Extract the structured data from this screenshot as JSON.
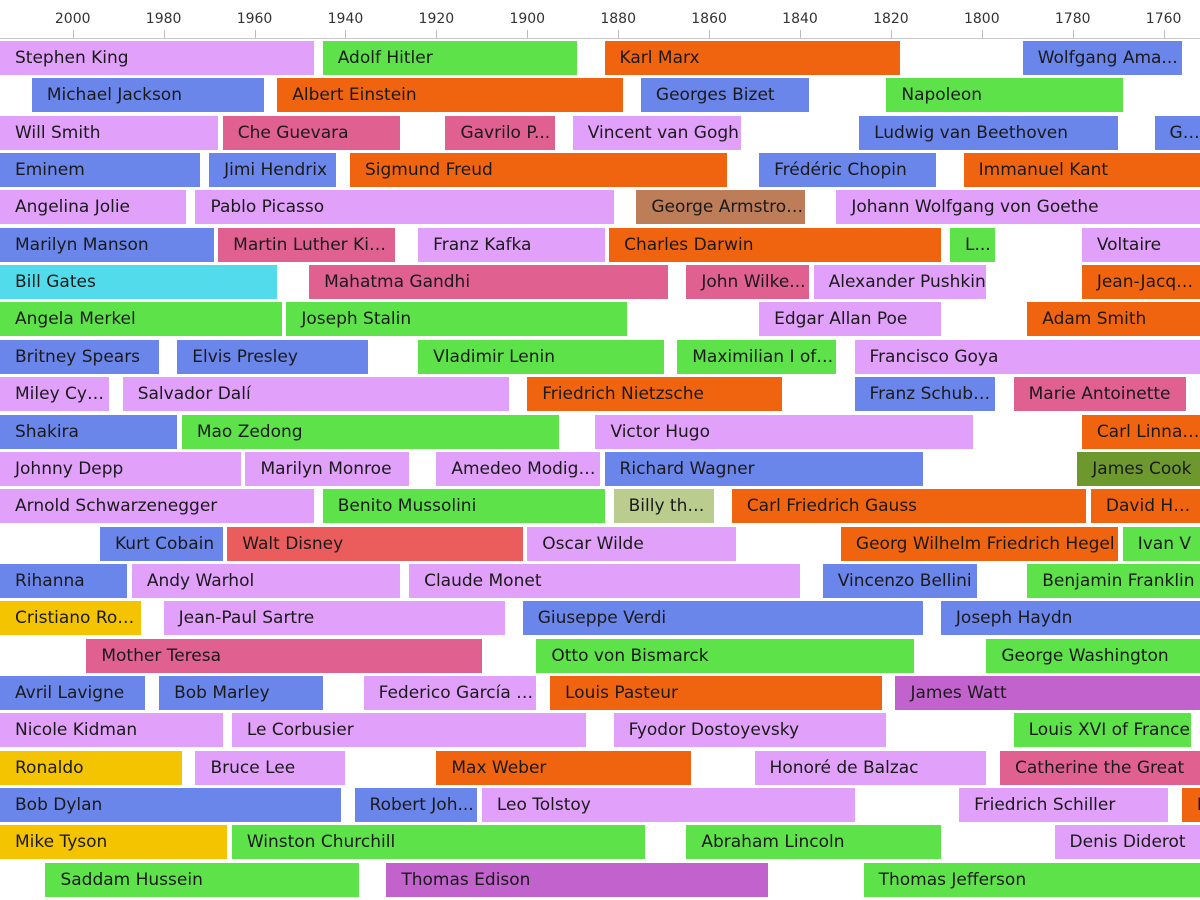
{
  "chart_data": {
    "type": "timeline",
    "axis": {
      "ticks": [
        2000,
        1980,
        1960,
        1940,
        1920,
        1900,
        1880,
        1860,
        1840,
        1820,
        1800,
        1780,
        1760
      ],
      "range": [
        2016,
        1752
      ],
      "direction": "descending-left-to-right"
    },
    "legend": "none",
    "colors": {
      "lavender": "#e1a0fa",
      "blue": "#6b86eb",
      "green": "#5ee24a",
      "orange": "#f06410",
      "pink": "#e0608f",
      "cyan": "#52dceb",
      "brown": "#bd7d58",
      "gold": "#f5c400",
      "purple": "#c262cc",
      "olive": "#6d982e",
      "khaki": "#bbcd8e",
      "coral": "#eb5d5d"
    },
    "rows": [
      [
        {
          "label": "Stephen King",
          "start": 1947,
          "end": 2016,
          "color": "lavender"
        },
        {
          "label": "Adolf Hitler",
          "start": 1889,
          "end": 1945,
          "color": "green"
        },
        {
          "label": "Karl Marx",
          "start": 1818,
          "end": 1883,
          "color": "orange"
        },
        {
          "label": "Wolfgang Ama...",
          "start": 1756,
          "end": 1791,
          "color": "blue"
        }
      ],
      [
        {
          "label": "Michael Jackson",
          "start": 1958,
          "end": 2009,
          "color": "blue"
        },
        {
          "label": "Albert Einstein",
          "start": 1879,
          "end": 1955,
          "color": "orange"
        },
        {
          "label": "Georges Bizet",
          "start": 1838,
          "end": 1875,
          "color": "blue"
        },
        {
          "label": "Napoleon",
          "start": 1769,
          "end": 1821,
          "color": "green"
        }
      ],
      [
        {
          "label": "Will Smith",
          "start": 1968,
          "end": 2016,
          "color": "lavender"
        },
        {
          "label": "Che Guevara",
          "start": 1928,
          "end": 1967,
          "color": "pink"
        },
        {
          "label": "Gavrilo P...",
          "start": 1894,
          "end": 1918,
          "color": "pink"
        },
        {
          "label": "Vincent van Gogh",
          "start": 1853,
          "end": 1890,
          "color": "lavender"
        },
        {
          "label": "Ludwig van Beethoven",
          "start": 1770,
          "end": 1827,
          "color": "blue"
        },
        {
          "label": "George",
          "start": 1732,
          "end": 1762,
          "color": "blue"
        }
      ],
      [
        {
          "label": "Eminem",
          "start": 1972,
          "end": 2016,
          "color": "blue"
        },
        {
          "label": "Jimi Hendrix",
          "start": 1942,
          "end": 1970,
          "color": "blue"
        },
        {
          "label": "Sigmund Freud",
          "start": 1856,
          "end": 1939,
          "color": "orange"
        },
        {
          "label": "Frédéric Chopin",
          "start": 1810,
          "end": 1849,
          "color": "blue"
        },
        {
          "label": "Immanuel Kant",
          "start": 1724,
          "end": 1804,
          "color": "orange"
        }
      ],
      [
        {
          "label": "Angelina Jolie",
          "start": 1975,
          "end": 2016,
          "color": "lavender"
        },
        {
          "label": "Pablo Picasso",
          "start": 1881,
          "end": 1973,
          "color": "lavender"
        },
        {
          "label": "George Armstron...",
          "start": 1839,
          "end": 1876,
          "color": "brown"
        },
        {
          "label": "Johann Wolfgang von Goethe",
          "start": 1749,
          "end": 1832,
          "color": "lavender"
        }
      ],
      [
        {
          "label": "Marilyn Manson",
          "start": 1969,
          "end": 2016,
          "color": "blue"
        },
        {
          "label": "Martin Luther Kin...",
          "start": 1929,
          "end": 1968,
          "color": "pink"
        },
        {
          "label": "Franz Kafka",
          "start": 1883,
          "end": 1924,
          "color": "lavender"
        },
        {
          "label": "Charles Darwin",
          "start": 1809,
          "end": 1882,
          "color": "orange"
        },
        {
          "label": "L...",
          "start": 1797,
          "end": 1807,
          "color": "green"
        },
        {
          "label": "Voltaire",
          "start": 1694,
          "end": 1778,
          "color": "lavender"
        }
      ],
      [
        {
          "label": "Bill Gates",
          "start": 1955,
          "end": 2016,
          "color": "cyan"
        },
        {
          "label": "Mahatma Gandhi",
          "start": 1869,
          "end": 1948,
          "color": "pink"
        },
        {
          "label": "John Wilke...",
          "start": 1838,
          "end": 1865,
          "color": "pink"
        },
        {
          "label": "Alexander Pushkin",
          "start": 1799,
          "end": 1837,
          "color": "lavender"
        },
        {
          "label": "Jean-Jacques Rousseau",
          "start": 1712,
          "end": 1778,
          "color": "orange"
        }
      ],
      [
        {
          "label": "Angela Merkel",
          "start": 1954,
          "end": 2016,
          "color": "green"
        },
        {
          "label": "Joseph Stalin",
          "start": 1878,
          "end": 1953,
          "color": "green"
        },
        {
          "label": "Edgar Allan Poe",
          "start": 1809,
          "end": 1849,
          "color": "lavender"
        },
        {
          "label": "Adam Smith",
          "start": 1723,
          "end": 1790,
          "color": "orange"
        }
      ],
      [
        {
          "label": "Britney Spears",
          "start": 1981,
          "end": 2016,
          "color": "blue"
        },
        {
          "label": "Elvis Presley",
          "start": 1935,
          "end": 1977,
          "color": "blue"
        },
        {
          "label": "Vladimir Lenin",
          "start": 1870,
          "end": 1924,
          "color": "green"
        },
        {
          "label": "Maximilian I of ...",
          "start": 1832,
          "end": 1867,
          "color": "green"
        },
        {
          "label": "Francisco Goya",
          "start": 1746,
          "end": 1828,
          "color": "lavender"
        }
      ],
      [
        {
          "label": "Miley Cyrus",
          "start": 1992,
          "end": 2016,
          "color": "lavender"
        },
        {
          "label": "Salvador Dalí",
          "start": 1904,
          "end": 1989,
          "color": "lavender"
        },
        {
          "label": "Friedrich Nietzsche",
          "start": 1844,
          "end": 1900,
          "color": "orange"
        },
        {
          "label": "Franz Schubert",
          "start": 1797,
          "end": 1828,
          "color": "blue"
        },
        {
          "label": "Marie Antoinette",
          "start": 1755,
          "end": 1793,
          "color": "pink"
        }
      ],
      [
        {
          "label": "Shakira",
          "start": 1977,
          "end": 2016,
          "color": "blue"
        },
        {
          "label": "Mao Zedong",
          "start": 1893,
          "end": 1976,
          "color": "green"
        },
        {
          "label": "Victor Hugo",
          "start": 1802,
          "end": 1885,
          "color": "lavender"
        },
        {
          "label": "Carl Linnaeus",
          "start": 1707,
          "end": 1778,
          "color": "orange"
        }
      ],
      [
        {
          "label": "Johnny Depp",
          "start": 1963,
          "end": 2016,
          "color": "lavender"
        },
        {
          "label": "Marilyn Monroe",
          "start": 1926,
          "end": 1962,
          "color": "lavender"
        },
        {
          "label": "Amedeo Modigli...",
          "start": 1884,
          "end": 1920,
          "color": "lavender"
        },
        {
          "label": "Richard Wagner",
          "start": 1813,
          "end": 1883,
          "color": "blue"
        },
        {
          "label": "James Cook",
          "start": 1728,
          "end": 1779,
          "color": "olive"
        }
      ],
      [
        {
          "label": "Arnold Schwarzenegger",
          "start": 1947,
          "end": 2016,
          "color": "lavender"
        },
        {
          "label": "Benito Mussolini",
          "start": 1883,
          "end": 1945,
          "color": "green"
        },
        {
          "label": "Billy the...",
          "start": 1859,
          "end": 1881,
          "color": "khaki"
        },
        {
          "label": "Carl Friedrich Gauss",
          "start": 1777,
          "end": 1855,
          "color": "orange"
        },
        {
          "label": "David Hume",
          "start": 1711,
          "end": 1776,
          "color": "orange"
        }
      ],
      [
        {
          "label": "Kurt Cobain",
          "start": 1967,
          "end": 1994,
          "color": "blue"
        },
        {
          "label": "Walt Disney",
          "start": 1901,
          "end": 1966,
          "color": "coral"
        },
        {
          "label": "Oscar Wilde",
          "start": 1854,
          "end": 1900,
          "color": "lavender"
        },
        {
          "label": "Georg Wilhelm Friedrich Hegel",
          "start": 1770,
          "end": 1831,
          "color": "orange"
        },
        {
          "label": "Ivan V",
          "start": 1740,
          "end": 1769,
          "color": "green"
        }
      ],
      [
        {
          "label": "Rihanna",
          "start": 1988,
          "end": 2016,
          "color": "blue"
        },
        {
          "label": "Andy Warhol",
          "start": 1928,
          "end": 1987,
          "color": "lavender"
        },
        {
          "label": "Claude Monet",
          "start": 1840,
          "end": 1926,
          "color": "lavender"
        },
        {
          "label": "Vincenzo Bellini",
          "start": 1801,
          "end": 1835,
          "color": "blue"
        },
        {
          "label": "Benjamin Franklin",
          "start": 1706,
          "end": 1790,
          "color": "green"
        }
      ],
      [
        {
          "label": "Cristiano Ron...",
          "start": 1985,
          "end": 2016,
          "color": "gold"
        },
        {
          "label": "Jean-Paul Sartre",
          "start": 1905,
          "end": 1980,
          "color": "lavender"
        },
        {
          "label": "Giuseppe Verdi",
          "start": 1813,
          "end": 1901,
          "color": "blue"
        },
        {
          "label": "Joseph Haydn",
          "start": 1732,
          "end": 1809,
          "color": "blue"
        }
      ],
      [
        {
          "label": "Mother Teresa",
          "start": 1910,
          "end": 1997,
          "color": "pink"
        },
        {
          "label": "Otto von Bismarck",
          "start": 1815,
          "end": 1898,
          "color": "green"
        },
        {
          "label": "George Washington",
          "start": 1732,
          "end": 1799,
          "color": "green"
        }
      ],
      [
        {
          "label": "Avril Lavigne",
          "start": 1984,
          "end": 2016,
          "color": "blue"
        },
        {
          "label": "Bob Marley",
          "start": 1945,
          "end": 1981,
          "color": "blue"
        },
        {
          "label": "Federico García L...",
          "start": 1898,
          "end": 1936,
          "color": "lavender"
        },
        {
          "label": "Louis Pasteur",
          "start": 1822,
          "end": 1895,
          "color": "orange"
        },
        {
          "label": "James Watt",
          "start": 1736,
          "end": 1819,
          "color": "purple"
        }
      ],
      [
        {
          "label": "Nicole Kidman",
          "start": 1967,
          "end": 2016,
          "color": "lavender"
        },
        {
          "label": "Le Corbusier",
          "start": 1887,
          "end": 1965,
          "color": "lavender"
        },
        {
          "label": "Fyodor Dostoyevsky",
          "start": 1821,
          "end": 1881,
          "color": "lavender"
        },
        {
          "label": "Louis XVI of France",
          "start": 1754,
          "end": 1793,
          "color": "green"
        }
      ],
      [
        {
          "label": "Ronaldo",
          "start": 1976,
          "end": 2016,
          "color": "gold"
        },
        {
          "label": "Bruce Lee",
          "start": 1940,
          "end": 1973,
          "color": "lavender"
        },
        {
          "label": "Max Weber",
          "start": 1864,
          "end": 1920,
          "color": "orange"
        },
        {
          "label": "Honoré de Balzac",
          "start": 1799,
          "end": 1850,
          "color": "lavender"
        },
        {
          "label": "Catherine the Great",
          "start": 1729,
          "end": 1796,
          "color": "pink"
        }
      ],
      [
        {
          "label": "Bob Dylan",
          "start": 1941,
          "end": 2016,
          "color": "blue"
        },
        {
          "label": "Robert Joh...",
          "start": 1911,
          "end": 1938,
          "color": "blue"
        },
        {
          "label": "Leo Tolstoy",
          "start": 1828,
          "end": 1910,
          "color": "lavender"
        },
        {
          "label": "Friedrich Schiller",
          "start": 1759,
          "end": 1805,
          "color": "lavender"
        },
        {
          "label": "M",
          "start": 1712,
          "end": 1756,
          "color": "orange"
        }
      ],
      [
        {
          "label": "Mike Tyson",
          "start": 1966,
          "end": 2016,
          "color": "gold"
        },
        {
          "label": "Winston Churchill",
          "start": 1874,
          "end": 1965,
          "color": "green"
        },
        {
          "label": "Abraham Lincoln",
          "start": 1809,
          "end": 1865,
          "color": "green"
        },
        {
          "label": "Denis Diderot",
          "start": 1713,
          "end": 1784,
          "color": "lavender"
        }
      ],
      [
        {
          "label": "Saddam Hussein",
          "start": 1937,
          "end": 2006,
          "color": "green"
        },
        {
          "label": "Thomas Edison",
          "start": 1847,
          "end": 1931,
          "color": "purple"
        },
        {
          "label": "Thomas Jefferson",
          "start": 1743,
          "end": 1826,
          "color": "green"
        }
      ]
    ]
  }
}
